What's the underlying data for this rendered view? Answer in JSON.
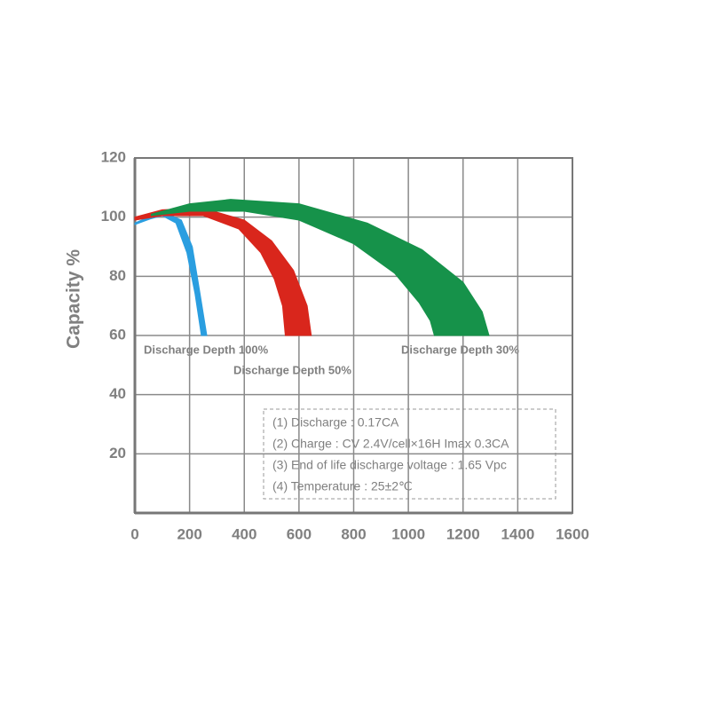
{
  "chart_data": {
    "type": "band",
    "ylabel": "Capacity %",
    "xlim": [
      0,
      1600
    ],
    "xticks": [
      0,
      200,
      400,
      600,
      800,
      1000,
      1200,
      1400,
      1600
    ],
    "ylim": [
      0,
      120
    ],
    "yticks": [
      20,
      40,
      60,
      80,
      100,
      120
    ],
    "grid": true,
    "series": [
      {
        "name": "Discharge Depth 100%",
        "color": "#2a9ee0",
        "outer": {
          "x": [
            0,
            60,
            110,
            170,
            210,
            235,
            263
          ],
          "values": [
            98,
            100.5,
            101.5,
            99,
            90,
            76,
            60
          ]
        },
        "inner": {
          "x": [
            0,
            60,
            100,
            150,
            190,
            220,
            243
          ],
          "values": [
            97.5,
            99.5,
            100.5,
            98,
            88,
            74,
            60
          ]
        }
      },
      {
        "name": "Discharge Depth 50%",
        "color": "#d9261c",
        "outer": {
          "x": [
            0,
            100,
            250,
            400,
            500,
            580,
            630,
            645
          ],
          "values": [
            100,
            102.5,
            103,
            99,
            92,
            82,
            70,
            60
          ]
        },
        "inner": {
          "x": [
            0,
            100,
            250,
            380,
            460,
            510,
            540,
            550
          ],
          "values": [
            99,
            100.5,
            100.5,
            96,
            88,
            79,
            70,
            60
          ]
        }
      },
      {
        "name": "Discharge Depth 30%",
        "color": "#16924a",
        "outer": {
          "x": [
            60,
            200,
            350,
            600,
            850,
            1050,
            1200,
            1270,
            1295
          ],
          "values": [
            101,
            104.5,
            106,
            104.5,
            98,
            89,
            78,
            68,
            60
          ]
        },
        "inner": {
          "x": [
            60,
            200,
            400,
            600,
            800,
            950,
            1040,
            1080,
            1095
          ],
          "values": [
            100.5,
            102,
            102,
            99,
            91,
            81,
            71,
            65,
            60
          ]
        }
      }
    ],
    "notes": [
      "(1) Discharge : 0.17CA",
      "(2) Charge : CV 2.4V/cell×16H Imax 0.3CA",
      "(3) End of life discharge voltage : 1.65 Vpc",
      "(4) Temperature : 25±2℃"
    ]
  }
}
